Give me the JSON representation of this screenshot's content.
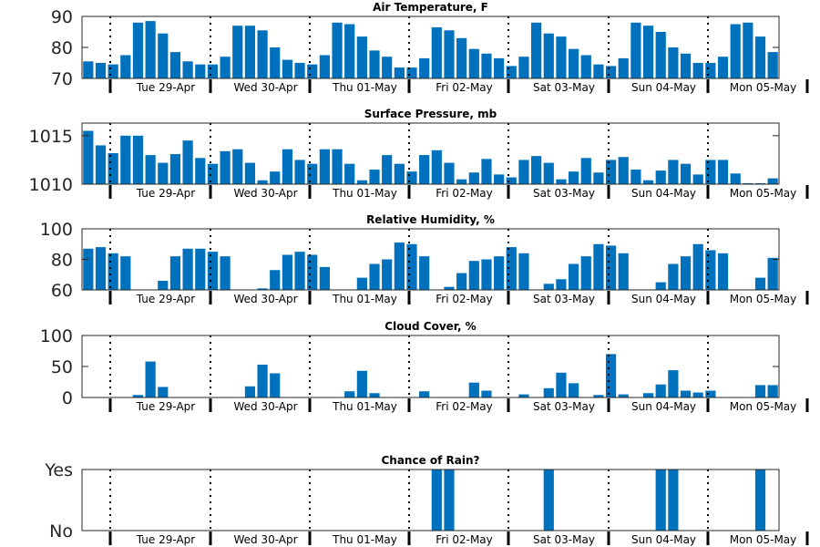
{
  "colors": {
    "bar": "#0072bd"
  },
  "days": [
    "Tue 29-Apr",
    "Wed 30-Apr",
    "Thu 01-May",
    "Fri 02-May",
    "Sat 03-May",
    "Sun 04-May",
    "Mon 05-May"
  ],
  "chart_data": [
    {
      "type": "bar",
      "title": "Air Temperature, F",
      "ylim": [
        70,
        90
      ],
      "yticks": [
        "70",
        "80",
        "90"
      ],
      "yticks_values": [
        70,
        80,
        90
      ],
      "values": [
        75.5,
        75,
        74.5,
        77.5,
        88,
        88.5,
        84.5,
        78.5,
        75.5,
        74.5,
        74.5,
        77,
        87,
        87,
        85.5,
        80,
        76,
        75,
        74.5,
        77.5,
        88,
        87.5,
        83.5,
        79,
        77,
        73.5,
        73.5,
        76.5,
        86.5,
        85.5,
        83,
        79.5,
        78,
        76.5,
        74,
        77,
        88,
        84.5,
        83.5,
        79.5,
        77.5,
        74.5,
        74,
        76.5,
        88,
        87,
        85,
        80,
        78,
        75,
        75,
        77,
        87.5,
        88,
        83.5,
        78.5
      ]
    },
    {
      "type": "bar",
      "title": "Surface Pressure, mb",
      "ylim": [
        1010,
        1016.3
      ],
      "yticks": [
        "1010",
        "1015"
      ],
      "yticks_values": [
        1010,
        1015
      ],
      "values": [
        1015.5,
        1014,
        1013.2,
        1015,
        1015,
        1013,
        1012.2,
        1013.1,
        1014.5,
        1012.7,
        1012.1,
        1013.4,
        1013.6,
        1012.2,
        1010.4,
        1011.3,
        1013.6,
        1012.5,
        1012.1,
        1013.6,
        1013.6,
        1012.1,
        1010.4,
        1011.5,
        1013,
        1012.1,
        1011.3,
        1013,
        1013.5,
        1012.2,
        1010.5,
        1011.2,
        1012.6,
        1011,
        1010.7,
        1012.5,
        1012.9,
        1012.2,
        1010.5,
        1011.3,
        1012.7,
        1011.2,
        1012.5,
        1012.8,
        1011.5,
        1010.4,
        1011.4,
        1012.5,
        1012.1,
        1011,
        1012.5,
        1012.5,
        1011.1,
        1010.1,
        1010.1,
        1010.6
      ]
    },
    {
      "type": "bar",
      "title": "Relative Humidity, %",
      "ylim": [
        60,
        100
      ],
      "yticks": [
        "60",
        "80",
        "100"
      ],
      "yticks_values": [
        60,
        80,
        100
      ],
      "values": [
        87,
        88,
        84,
        82,
        58,
        58,
        66,
        82,
        87,
        87,
        85,
        82,
        58,
        58,
        61,
        73,
        83,
        85,
        83,
        75,
        58,
        58,
        68,
        77,
        80,
        91,
        90,
        82,
        58,
        62,
        71,
        79,
        80,
        82,
        88,
        84,
        58,
        64,
        67,
        77,
        82,
        90,
        89,
        84,
        58,
        58,
        65,
        77,
        82,
        90,
        86,
        84,
        58,
        58,
        68,
        81
      ]
    },
    {
      "type": "bar",
      "title": "Cloud Cover, %",
      "ylim": [
        0,
        100
      ],
      "yticks": [
        "0",
        "50",
        "100"
      ],
      "yticks_values": [
        0,
        50,
        100
      ],
      "values": [
        0,
        0,
        0,
        0,
        4,
        58,
        17,
        0,
        0,
        0,
        0,
        0,
        0,
        18,
        53,
        39,
        0,
        0,
        0,
        0,
        0,
        10,
        43,
        7,
        0,
        0,
        0,
        10,
        0,
        0,
        0,
        24,
        11,
        0,
        0,
        5,
        0,
        15,
        40,
        23,
        0,
        4,
        70,
        5,
        0,
        7,
        21,
        44,
        11,
        8,
        11,
        0,
        0,
        0,
        20,
        20
      ]
    },
    {
      "type": "bar",
      "title": "Chance of Rain?",
      "ylim": [
        0,
        1
      ],
      "yticks": [
        "No",
        "Yes"
      ],
      "yticks_values": [
        0,
        1
      ],
      "values": [
        0,
        0,
        0,
        0,
        0,
        0,
        0,
        0,
        0,
        0,
        0,
        0,
        0,
        0,
        0,
        0,
        0,
        0,
        0,
        0,
        0,
        0,
        0,
        0,
        0,
        0,
        0,
        0,
        1,
        1,
        0,
        0,
        0,
        0,
        0,
        0,
        0,
        1,
        0,
        0,
        0,
        0,
        0,
        0,
        0,
        0,
        1,
        1,
        0,
        0,
        0,
        0,
        0,
        0,
        1,
        0
      ]
    }
  ]
}
